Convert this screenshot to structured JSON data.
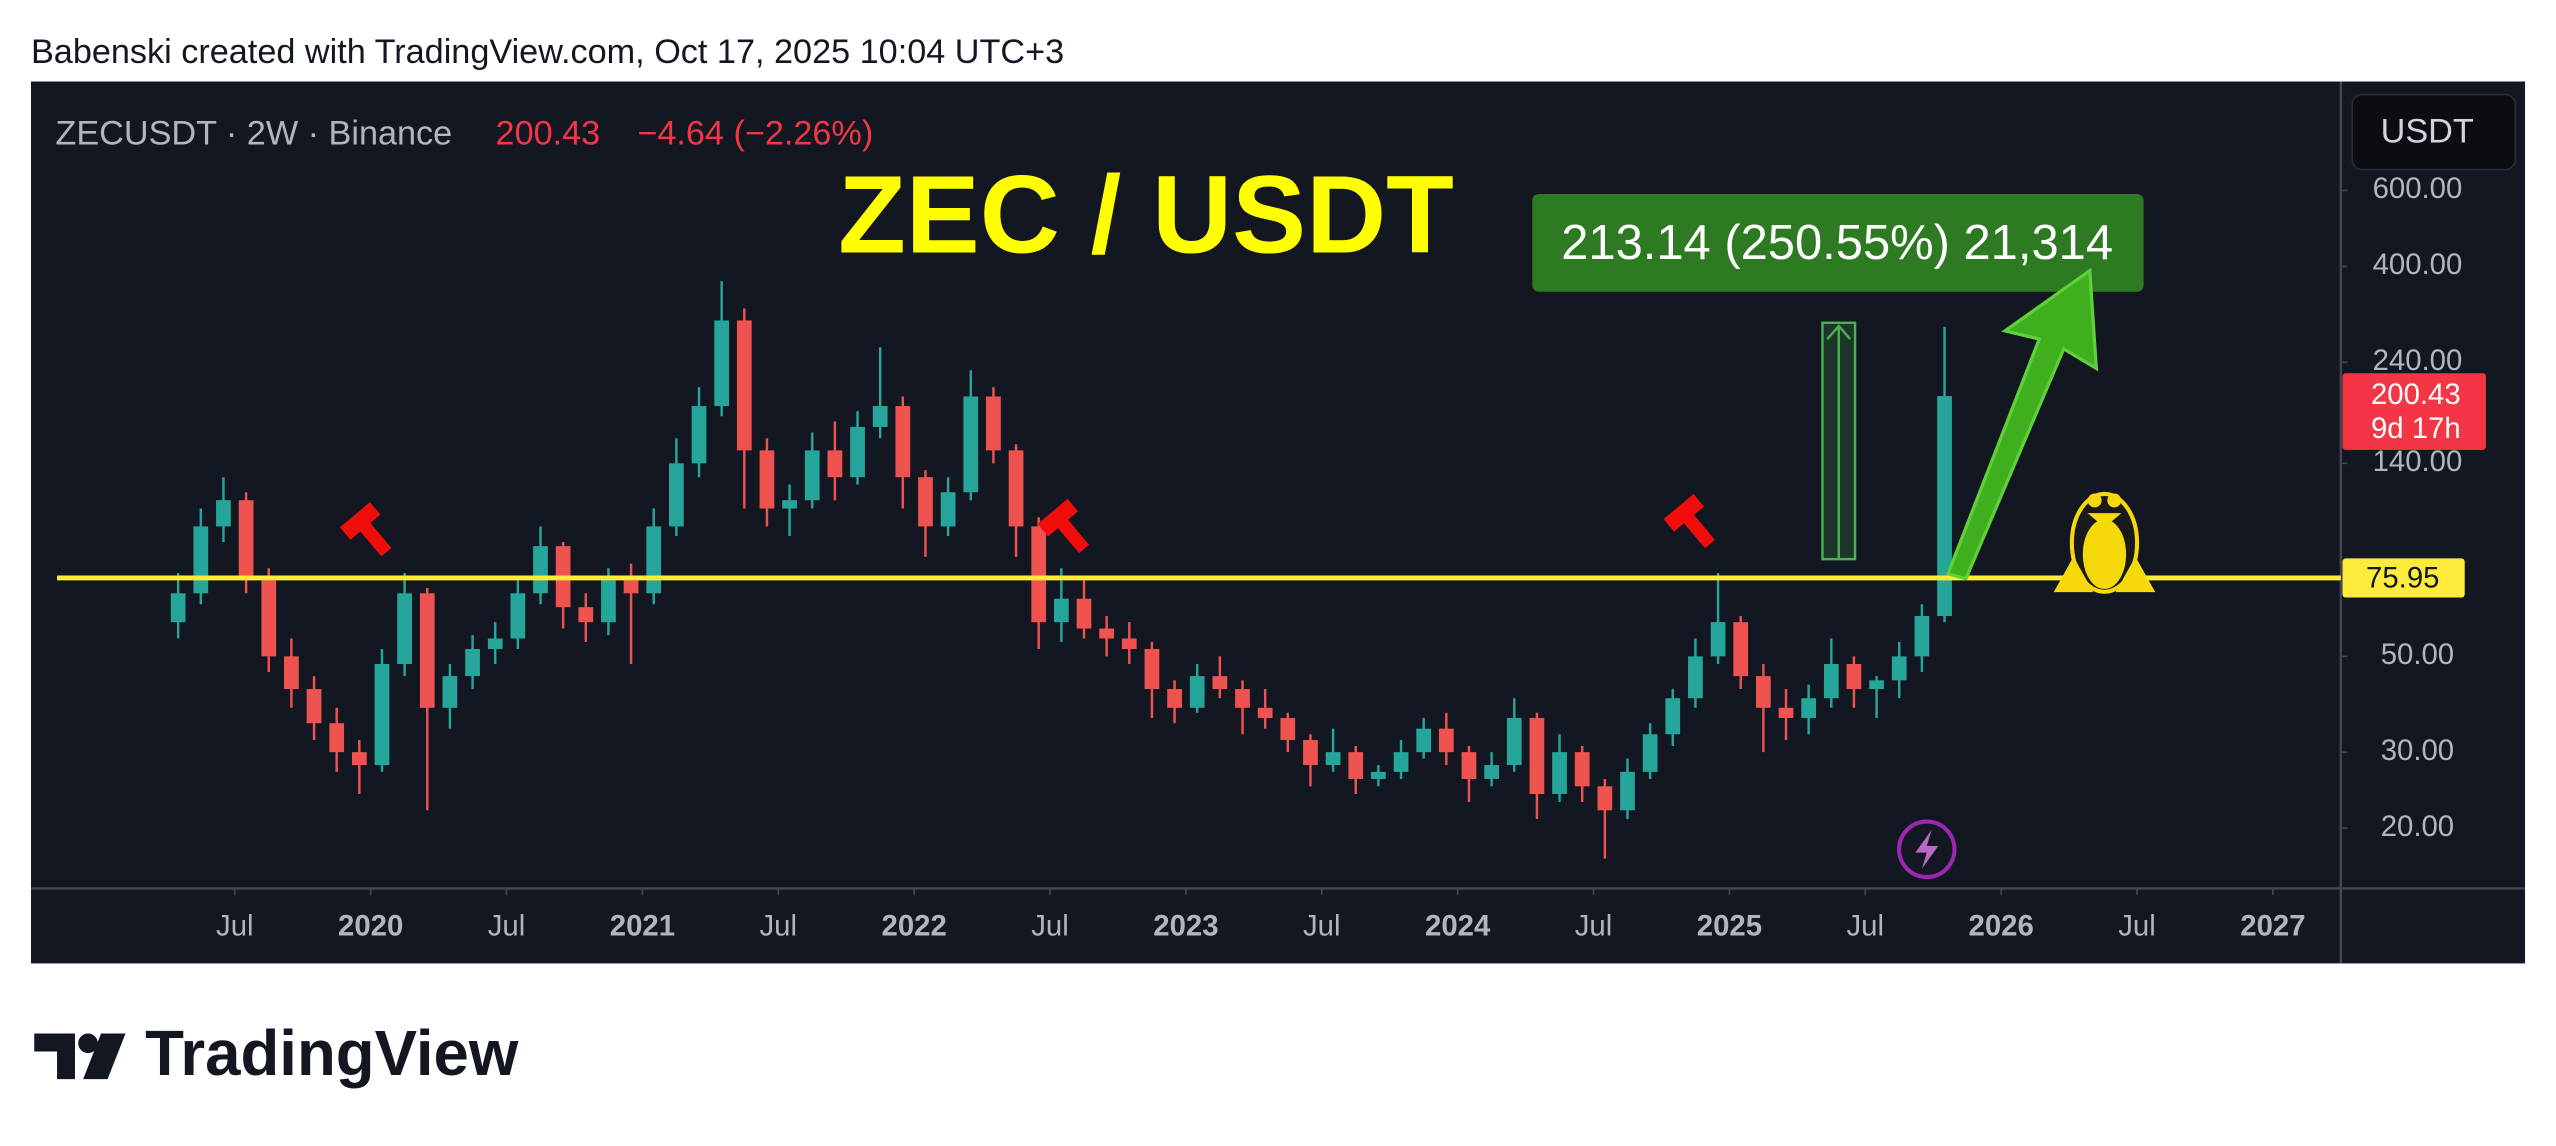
{
  "header": {
    "credit": "Babenski created with TradingView.com, Oct 17, 2025 10:04 UTC+3"
  },
  "chart_data": {
    "type": "candlestick",
    "symbol": "ZECUSDT · 2W · Binance",
    "price": "200.43",
    "change": "−4.64 (−2.26%)",
    "title": "ZEC / USDT",
    "measure_label": "213.14 (250.55%) 21,314",
    "currency_button": "USDT",
    "up_color": "#26a69a",
    "down_color": "#ef5350",
    "log_scale": true,
    "xlim": [
      "2018-10",
      "2027-04"
    ],
    "ylim": [
      14.5,
      1073
    ],
    "yticks": [
      {
        "value": 600,
        "label": "600.00"
      },
      {
        "value": 400,
        "label": "400.00"
      },
      {
        "value": 240,
        "label": "240.00"
      },
      {
        "value": 140,
        "label": "140.00"
      },
      {
        "value": 50,
        "label": "50.00"
      },
      {
        "value": 30,
        "label": "30.00"
      },
      {
        "value": 20,
        "label": "20.00"
      }
    ],
    "xticks": [
      {
        "value": "2019-07",
        "label": "Jul"
      },
      {
        "value": "2020-01",
        "label": "2020"
      },
      {
        "value": "2020-07",
        "label": "Jul"
      },
      {
        "value": "2021-01",
        "label": "2021"
      },
      {
        "value": "2021-07",
        "label": "Jul"
      },
      {
        "value": "2022-01",
        "label": "2022"
      },
      {
        "value": "2022-07",
        "label": "Jul"
      },
      {
        "value": "2023-01",
        "label": "2023"
      },
      {
        "value": "2023-07",
        "label": "Jul"
      },
      {
        "value": "2024-01",
        "label": "2024"
      },
      {
        "value": "2024-07",
        "label": "Jul"
      },
      {
        "value": "2025-01",
        "label": "2025"
      },
      {
        "value": "2025-07",
        "label": "Jul"
      },
      {
        "value": "2026-01",
        "label": "2026"
      },
      {
        "value": "2026-07",
        "label": "Jul"
      },
      {
        "value": "2027-01",
        "label": "2027"
      }
    ],
    "level": {
      "value": 75.95,
      "label": "75.95",
      "color": "#ffeb3b"
    },
    "last_price": {
      "value": 200.43,
      "label": "200.43",
      "countdown": "9d 17h",
      "color": "#f23645"
    },
    "x": [
      "2019-04",
      "2019-05",
      "2019-06",
      "2019-07",
      "2019-08",
      "2019-09",
      "2019-10",
      "2019-11",
      "2019-12",
      "2020-01",
      "2020-02",
      "2020-03",
      "2020-04",
      "2020-05",
      "2020-06",
      "2020-07",
      "2020-08",
      "2020-09",
      "2020-10",
      "2020-11",
      "2020-12",
      "2021-01",
      "2021-02",
      "2021-03",
      "2021-04",
      "2021-05",
      "2021-06",
      "2021-07",
      "2021-08",
      "2021-09",
      "2021-10",
      "2021-11",
      "2021-12",
      "2022-01",
      "2022-02",
      "2022-03",
      "2022-04",
      "2022-05",
      "2022-06",
      "2022-07",
      "2022-08",
      "2022-09",
      "2022-10",
      "2022-11",
      "2022-12",
      "2023-01",
      "2023-02",
      "2023-03",
      "2023-04",
      "2023-05",
      "2023-06",
      "2023-07",
      "2023-08",
      "2023-09",
      "2023-10",
      "2023-11",
      "2023-12",
      "2024-01",
      "2024-02",
      "2024-03",
      "2024-04",
      "2024-05",
      "2024-06",
      "2024-07",
      "2024-08",
      "2024-09",
      "2024-10",
      "2024-11",
      "2024-12",
      "2025-01",
      "2025-02",
      "2025-03",
      "2025-04",
      "2025-05",
      "2025-06",
      "2025-07",
      "2025-08",
      "2025-09",
      "2025-10"
    ],
    "open": [
      60,
      70,
      100,
      115,
      75,
      50,
      42,
      35,
      30,
      28,
      48,
      70,
      38,
      45,
      52,
      55,
      70,
      90,
      65,
      60,
      75,
      70,
      100,
      140,
      190,
      300,
      150,
      110,
      115,
      150,
      130,
      170,
      190,
      130,
      100,
      120,
      200,
      150,
      100,
      60,
      68,
      58,
      55,
      52,
      42,
      38,
      45,
      42,
      38,
      36,
      32,
      28,
      30,
      26,
      27,
      30,
      34,
      30,
      26,
      28,
      36,
      24,
      30,
      25,
      22,
      27,
      33,
      40,
      50,
      60,
      45,
      38,
      36,
      40,
      48,
      42,
      44,
      50,
      62
    ],
    "high": [
      78,
      110,
      130,
      120,
      80,
      55,
      45,
      38,
      32,
      52,
      78,
      72,
      48,
      56,
      60,
      75,
      100,
      92,
      70,
      80,
      82,
      110,
      160,
      210,
      370,
      320,
      160,
      125,
      165,
      175,
      185,
      260,
      200,
      135,
      130,
      230,
      210,
      155,
      105,
      80,
      75,
      62,
      60,
      54,
      44,
      48,
      50,
      44,
      42,
      37,
      33,
      34,
      31,
      28,
      32,
      36,
      37,
      31,
      30,
      40,
      37,
      33,
      31,
      26,
      29,
      35,
      42,
      55,
      78,
      62,
      48,
      42,
      43,
      55,
      50,
      45,
      54,
      66,
      290
    ],
    "low": [
      55,
      66,
      92,
      70,
      46,
      38,
      32,
      27,
      24,
      27,
      45,
      22,
      34,
      42,
      48,
      52,
      66,
      58,
      54,
      56,
      48,
      66,
      95,
      130,
      180,
      110,
      100,
      95,
      110,
      115,
      125,
      160,
      110,
      85,
      95,
      115,
      140,
      85,
      52,
      54,
      55,
      50,
      48,
      36,
      35,
      37,
      40,
      33,
      34,
      30,
      25,
      27,
      24,
      25,
      26,
      29,
      28,
      23,
      25,
      27,
      21,
      23,
      23,
      17,
      21,
      26,
      31,
      38,
      48,
      42,
      30,
      32,
      33,
      38,
      38,
      36,
      40,
      46,
      60
    ],
    "close": [
      70,
      100,
      115,
      75,
      50,
      42,
      35,
      30,
      28,
      48,
      70,
      38,
      45,
      52,
      55,
      70,
      90,
      65,
      60,
      75,
      70,
      100,
      140,
      190,
      300,
      150,
      110,
      115,
      150,
      130,
      170,
      190,
      130,
      100,
      120,
      200,
      150,
      100,
      60,
      68,
      58,
      55,
      52,
      42,
      38,
      45,
      42,
      38,
      36,
      32,
      28,
      30,
      26,
      27,
      30,
      34,
      30,
      26,
      28,
      36,
      24,
      30,
      25,
      22,
      27,
      33,
      40,
      50,
      60,
      45,
      38,
      36,
      40,
      48,
      42,
      44,
      50,
      62,
      200.43
    ]
  },
  "footer": {
    "brand": "TradingView"
  }
}
